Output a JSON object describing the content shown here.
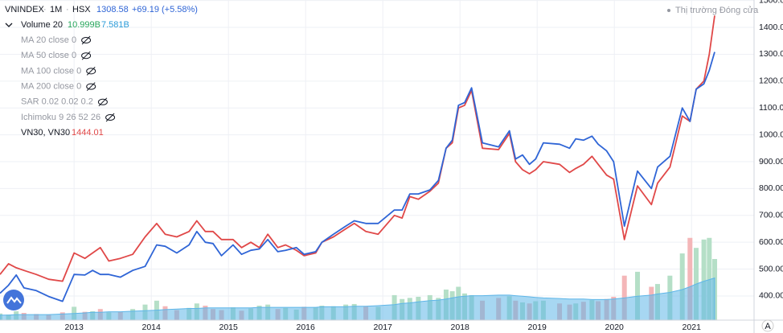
{
  "chart_data": {
    "type": "line",
    "symbol": "VNINDEX",
    "interval": "1M",
    "exchange": "HSX",
    "change": "+69.19 (+5.58%)",
    "market_status": "Thị trường Đóng cửa",
    "indicators": [
      "MA 20 close 0",
      "MA 50 close 0",
      "MA 100 close 0",
      "MA 200 close 0",
      "SAR 0.02 0.02 0.2",
      "Ichimoku 9 26 52 26"
    ],
    "x": [
      2012.04,
      2012.15,
      2012.25,
      2012.35,
      2012.51,
      2012.67,
      2012.85,
      2013.0,
      2013.14,
      2013.24,
      2013.34,
      2013.45,
      2013.6,
      2013.76,
      2013.92,
      2014.07,
      2014.18,
      2014.33,
      2014.49,
      2014.59,
      2014.7,
      2014.8,
      2014.91,
      2015.06,
      2015.17,
      2015.29,
      2015.4,
      2015.51,
      2015.64,
      2015.74,
      2015.88,
      2015.98,
      2016.13,
      2016.21,
      2016.36,
      2016.52,
      2016.63,
      2016.78,
      2016.94,
      2017.15,
      2017.25,
      2017.35,
      2017.46,
      2017.61,
      2017.72,
      2017.82,
      2017.9,
      2017.98,
      2018.06,
      2018.15,
      2018.29,
      2018.5,
      2018.64,
      2018.72,
      2018.81,
      2018.9,
      2018.98,
      2019.08,
      2019.29,
      2019.42,
      2019.5,
      2019.6,
      2019.71,
      2019.79,
      2019.9,
      2019.99,
      2020.13,
      2020.3,
      2020.48,
      2020.56,
      2020.72,
      2020.88,
      2020.98,
      2021.06,
      2021.16,
      2021.23,
      2021.3
    ],
    "series": [
      {
        "name": "VNINDEX",
        "color": "#2f65d6",
        "values": [
          410,
          440,
          478,
          430,
          420,
          398,
          380,
          480,
          478,
          495,
          480,
          480,
          470,
          495,
          510,
          590,
          585,
          560,
          590,
          640,
          600,
          595,
          550,
          590,
          555,
          570,
          575,
          610,
          565,
          570,
          580,
          555,
          565,
          600,
          630,
          660,
          680,
          670,
          670,
          720,
          720,
          780,
          780,
          795,
          830,
          950,
          980,
          1110,
          1120,
          1175,
          970,
          955,
          1015,
          910,
          925,
          890,
          910,
          970,
          965,
          950,
          985,
          980,
          995,
          965,
          940,
          900,
          660,
          865,
          800,
          880,
          920,
          1100,
          1050,
          1170,
          1190,
          1240,
          1308.58
        ]
      },
      {
        "name": "VN30, VN30",
        "color": "#e04848",
        "values": [
          480,
          520,
          505,
          495,
          480,
          462,
          455,
          560,
          540,
          560,
          580,
          530,
          540,
          555,
          620,
          670,
          630,
          620,
          640,
          680,
          640,
          640,
          610,
          610,
          580,
          600,
          580,
          630,
          580,
          590,
          570,
          550,
          560,
          600,
          620,
          650,
          670,
          640,
          630,
          700,
          690,
          770,
          760,
          790,
          820,
          950,
          970,
          1100,
          1110,
          1165,
          950,
          945,
          1005,
          900,
          870,
          855,
          870,
          900,
          890,
          860,
          875,
          890,
          920,
          890,
          850,
          835,
          610,
          810,
          740,
          820,
          880,
          1070,
          1050,
          1170,
          1200,
          1300,
          1444.01
        ]
      }
    ],
    "volume": {
      "name": "Volume 20",
      "axis": "y2",
      "up_color": "#b5dfc7",
      "down_color": "#f4b6b8",
      "values": [
        1.2,
        1.0,
        1.6,
        1.3,
        1.1,
        1.0,
        1.4,
        2.4,
        1.5,
        1.6,
        2.0,
        1.4,
        1.5,
        2.0,
        2.8,
        3.5,
        2.5,
        1.8,
        2.2,
        3.0,
        2.6,
        2.0,
        1.8,
        2.3,
        1.7,
        2.1,
        2.6,
        2.8,
        2.0,
        2.2,
        1.9,
        2.4,
        2.3,
        2.6,
        2.5,
        2.8,
        2.9,
        2.5,
        2.4,
        4.5,
        3.8,
        4.0,
        4.2,
        4.5,
        4.0,
        5.5,
        5.2,
        6.0,
        4.8,
        4.5,
        3.5,
        4.0,
        4.3,
        3.5,
        3.2,
        3.0,
        3.4,
        3.5,
        3.0,
        2.8,
        3.0,
        3.3,
        3.6,
        3.4,
        3.8,
        4.2,
        8.0,
        8.7,
        6.0,
        6.5,
        8.0,
        12.0,
        14.8,
        13.0,
        14.5,
        14.8,
        10.999
      ],
      "last_label": "10.999B",
      "ma_color": "#5eb6e8",
      "ma_values": [
        0.9,
        0.9,
        1.0,
        1.0,
        1.0,
        1.0,
        1.1,
        1.2,
        1.3,
        1.4,
        1.4,
        1.5,
        1.5,
        1.6,
        1.7,
        1.8,
        1.9,
        2.0,
        2.1,
        2.1,
        2.2,
        2.2,
        2.2,
        2.2,
        2.2,
        2.2,
        2.3,
        2.3,
        2.3,
        2.3,
        2.3,
        2.3,
        2.3,
        2.4,
        2.4,
        2.4,
        2.5,
        2.5,
        2.6,
        2.8,
        3.0,
        3.1,
        3.3,
        3.5,
        3.6,
        3.8,
        4.0,
        4.2,
        4.3,
        4.4,
        4.4,
        4.5,
        4.5,
        4.4,
        4.3,
        4.2,
        4.1,
        4.0,
        3.9,
        3.8,
        3.8,
        3.8,
        3.7,
        3.7,
        3.7,
        3.8,
        4.0,
        4.3,
        4.5,
        4.7,
        5.0,
        5.5,
        6.0,
        6.5,
        7.0,
        7.3,
        7.581
      ],
      "ma_last_label": "7.581B"
    },
    "xlim": [
      2012.04,
      2021.81
    ],
    "xticks": [
      2013,
      2014,
      2015,
      2016,
      2017,
      2018,
      2019,
      2020,
      2021
    ],
    "ylim": [
      310,
      1502
    ],
    "yticks": [
      {
        "value": 400,
        "label": "400.00"
      },
      {
        "value": 500,
        "label": "500.00"
      },
      {
        "value": 600,
        "label": "600.00"
      },
      {
        "value": 700,
        "label": "700.00"
      },
      {
        "value": 800,
        "label": "800.00"
      },
      {
        "value": 900,
        "label": "900.00"
      },
      {
        "value": 1000,
        "label": "1000.00"
      },
      {
        "value": 1100,
        "label": "1100.00"
      },
      {
        "value": 1200,
        "label": "1200.00"
      },
      {
        "value": 1300,
        "label": "1300.00"
      },
      {
        "value": 1400,
        "label": "1400.00"
      },
      {
        "value": 1500,
        "label": "1500.00"
      }
    ],
    "y2lim": [
      0,
      57.6
    ],
    "grid": true
  }
}
